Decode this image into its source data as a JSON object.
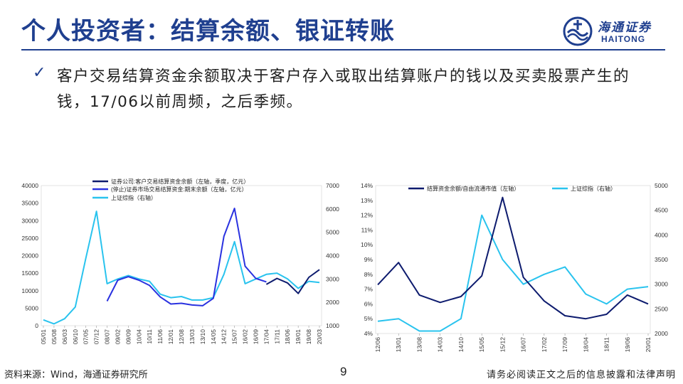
{
  "slide": {
    "title": "个人投资者：结算余额、银证转账",
    "bullet": "客户交易结算资金余额取决于客户存入或取出结算账户的钱以及买卖股票产生的钱，17/06以前周频，之后季频。",
    "source": "资料来源：Wind，海通证券研究所",
    "page_number": "9",
    "disclaimer": "请务必阅读正文之后的信息披露和法律声明"
  },
  "logo": {
    "cn": "海通证券",
    "en": "HAITONG"
  },
  "colors": {
    "brand": "#1f3f8f",
    "dark_series": "#0d1b6e",
    "blue_series": "#2a32e0",
    "cyan_series": "#29c3ee"
  },
  "chart_data": [
    {
      "type": "line",
      "legend_position": "top",
      "x_ticks": [
        "05/01",
        "05/08",
        "06/03",
        "06/10",
        "07/05",
        "07/12",
        "08/07",
        "09/02",
        "09/09",
        "10/04",
        "10/11",
        "11/06",
        "12/01",
        "12/08",
        "13/03",
        "13/10",
        "14/05",
        "14/12",
        "15/07",
        "16/02",
        "16/09",
        "17/04",
        "17/11",
        "18/06",
        "19/01",
        "19/08",
        "20/03"
      ],
      "y_left_ticks": [
        "0",
        "5000",
        "10000",
        "15000",
        "20000",
        "25000",
        "30000",
        "35000",
        "40000"
      ],
      "y_right_ticks": [
        "1000",
        "2000",
        "3000",
        "4000",
        "5000",
        "6000",
        "7000"
      ],
      "ylim_left": [
        0,
        40000
      ],
      "ylim_right": [
        1000,
        7000
      ],
      "series": [
        {
          "name": "证券公司:客户交易结算资金余额（左轴，季度，亿元）",
          "axis": "left",
          "color": "#0d1b6e",
          "values": [
            null,
            null,
            null,
            null,
            null,
            null,
            null,
            null,
            null,
            null,
            null,
            null,
            null,
            null,
            null,
            null,
            null,
            null,
            null,
            null,
            null,
            11800,
            13500,
            12200,
            9200,
            13800,
            16000
          ]
        },
        {
          "name": "(停止)证券市场交易结算资金:期末余额（左轴，亿元）",
          "axis": "left",
          "color": "#2a32e0",
          "values": [
            null,
            null,
            null,
            null,
            null,
            null,
            7000,
            13000,
            14000,
            13000,
            11500,
            8200,
            6200,
            6400,
            5900,
            5700,
            7800,
            25500,
            33500,
            17000,
            13500,
            12500,
            null,
            null,
            null,
            null,
            null
          ]
        },
        {
          "name": "上证综指（右轴）",
          "axis": "right",
          "color": "#29c3ee",
          "values": [
            1250,
            1080,
            1300,
            1800,
            3900,
            5900,
            2800,
            3000,
            3150,
            3000,
            2900,
            2350,
            2200,
            2250,
            2100,
            2100,
            2200,
            3200,
            4600,
            2800,
            3000,
            3200,
            3250,
            3000,
            2600,
            2900,
            2850
          ]
        }
      ]
    },
    {
      "type": "line",
      "legend_position": "top",
      "x_ticks": [
        "12/06",
        "13/01",
        "13/08",
        "14/03",
        "14/10",
        "15/05",
        "15/12",
        "16/07",
        "17/02",
        "17/09",
        "18/04",
        "18/11",
        "19/06",
        "20/01"
      ],
      "y_left_ticks": [
        "4%",
        "5%",
        "6%",
        "7%",
        "8%",
        "9%",
        "10%",
        "11%",
        "12%",
        "13%",
        "14%"
      ],
      "y_right_ticks": [
        "2000",
        "2500",
        "3000",
        "3500",
        "4000",
        "4500",
        "5000"
      ],
      "ylim_left": [
        4,
        14
      ],
      "ylim_right": [
        2000,
        5000
      ],
      "series": [
        {
          "name": "结算资金余额/自由流通市值（左轴）",
          "axis": "left",
          "color": "#0d1b6e",
          "values": [
            7.3,
            8.8,
            6.6,
            6.1,
            6.5,
            7.9,
            13.2,
            7.8,
            6.2,
            5.2,
            5.0,
            5.3,
            6.6,
            6.0
          ]
        },
        {
          "name": "上证综指（右轴）",
          "axis": "right",
          "color": "#29c3ee",
          "values": [
            2250,
            2300,
            2050,
            2050,
            2300,
            4400,
            3500,
            3000,
            3200,
            3350,
            2800,
            2600,
            2900,
            2950
          ]
        }
      ]
    }
  ]
}
